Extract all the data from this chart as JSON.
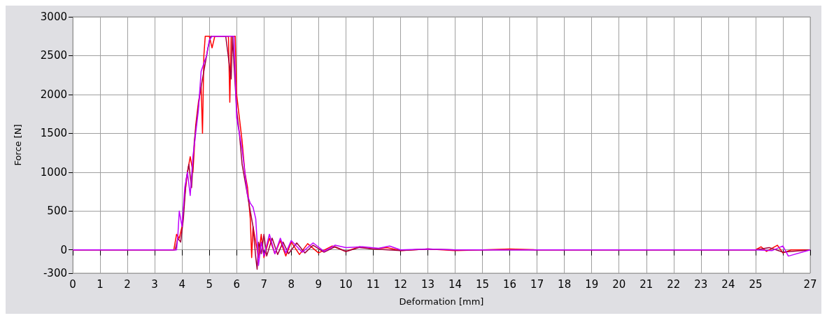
{
  "chart_data": {
    "type": "line",
    "xlabel": "Deformation [mm]",
    "ylabel": "Force [N]",
    "xlim": [
      0,
      27
    ],
    "xticks": [
      0,
      1,
      2,
      3,
      4,
      5,
      6,
      7,
      8,
      9,
      10,
      11,
      12,
      13,
      14,
      15,
      16,
      17,
      18,
      19,
      20,
      21,
      22,
      23,
      24,
      25,
      {
        "value": 26,
        "label": null
      },
      27
    ],
    "ylim": [
      -300,
      3000
    ],
    "yticks": [
      -300,
      0,
      500,
      1000,
      1500,
      2000,
      2500,
      3000
    ],
    "grid": true,
    "marker": "none",
    "line_style": "solid",
    "series": [
      {
        "color": "#ff0000",
        "x": [
          0,
          3.7,
          3.75,
          3.8,
          3.9,
          4.0,
          4.1,
          4.2,
          4.3,
          4.4,
          4.5,
          4.6,
          4.7,
          4.75,
          4.8,
          4.85,
          5.0,
          5.1,
          5.2,
          5.5,
          5.7,
          5.75,
          5.8,
          5.95,
          6.0,
          6.1,
          6.2,
          6.3,
          6.4,
          6.5,
          6.55,
          6.6,
          6.7,
          6.8,
          6.9,
          7.0,
          7.2,
          7.4,
          7.6,
          7.8,
          8.0,
          8.3,
          8.6,
          9.0,
          9.5,
          10,
          10.5,
          11,
          11.5,
          12,
          13,
          14,
          15,
          16,
          17,
          18,
          19,
          20,
          21,
          22,
          23,
          24,
          25,
          25.2,
          25.4,
          25.8,
          26,
          26.3,
          27
        ],
        "values": [
          0,
          0,
          100,
          200,
          150,
          300,
          700,
          1000,
          1200,
          1000,
          1600,
          1900,
          2100,
          1500,
          2500,
          2750,
          2750,
          2600,
          2750,
          2750,
          2750,
          1900,
          2750,
          2750,
          2000,
          1700,
          1400,
          1000,
          800,
          400,
          -100,
          300,
          100,
          -100,
          200,
          -100,
          150,
          -50,
          120,
          -80,
          100,
          -60,
          80,
          -40,
          50,
          -20,
          40,
          10,
          30,
          -10,
          10,
          -10,
          0,
          10,
          0,
          0,
          0,
          0,
          0,
          0,
          0,
          0,
          0,
          40,
          -20,
          60,
          -40,
          0,
          0
        ]
      },
      {
        "color": "#a0003c",
        "x": [
          0,
          3.75,
          3.85,
          3.95,
          4.05,
          4.15,
          4.25,
          4.35,
          4.45,
          4.55,
          4.65,
          4.75,
          4.85,
          4.95,
          5.05,
          5.3,
          5.6,
          5.8,
          5.85,
          5.9,
          6.0,
          6.1,
          6.2,
          6.3,
          6.4,
          6.5,
          6.6,
          6.7,
          6.75,
          6.8,
          6.9,
          7.0,
          7.1,
          7.3,
          7.5,
          7.7,
          7.9,
          8.2,
          8.5,
          8.8,
          9.2,
          9.6,
          10,
          10.5,
          11,
          12,
          13,
          14,
          15,
          16,
          18,
          20,
          22,
          24,
          25,
          25.5,
          26,
          27
        ],
        "values": [
          0,
          0,
          150,
          100,
          400,
          900,
          1100,
          800,
          1400,
          1700,
          2000,
          2200,
          2400,
          2600,
          2750,
          2750,
          2750,
          2200,
          2750,
          2400,
          1800,
          1500,
          1100,
          900,
          700,
          500,
          300,
          -100,
          -250,
          100,
          -50,
          200,
          -80,
          150,
          -60,
          100,
          -50,
          90,
          -40,
          60,
          -30,
          40,
          -20,
          30,
          10,
          -10,
          10,
          0,
          0,
          0,
          0,
          0,
          0,
          0,
          0,
          30,
          -30,
          0
        ]
      },
      {
        "color": "#c000ff",
        "x": [
          0,
          3.8,
          3.85,
          3.9,
          4.0,
          4.1,
          4.2,
          4.3,
          4.4,
          4.5,
          4.6,
          4.7,
          4.8,
          4.9,
          5.0,
          5.1,
          5.3,
          5.6,
          5.9,
          6.0,
          6.1,
          6.2,
          6.3,
          6.4,
          6.5,
          6.6,
          6.7,
          6.8,
          6.9,
          7.0,
          7.2,
          7.4,
          7.6,
          7.8,
          8.0,
          8.4,
          8.8,
          9.2,
          9.6,
          10,
          10.6,
          11.2,
          11.6,
          12,
          13,
          14,
          15,
          16,
          17,
          18,
          20,
          22,
          24,
          25,
          25.6,
          26,
          26.2,
          27
        ],
        "values": [
          0,
          0,
          200,
          500,
          300,
          800,
          1000,
          700,
          1200,
          1500,
          1800,
          2300,
          2400,
          2500,
          2700,
          2750,
          2750,
          2750,
          2750,
          1700,
          1500,
          1300,
          1000,
          700,
          600,
          550,
          400,
          -200,
          100,
          -80,
          200,
          -50,
          150,
          -40,
          120,
          -30,
          90,
          -20,
          60,
          30,
          40,
          20,
          50,
          0,
          10,
          0,
          0,
          0,
          0,
          0,
          0,
          0,
          0,
          0,
          -10,
          50,
          -80,
          0
        ]
      }
    ]
  }
}
